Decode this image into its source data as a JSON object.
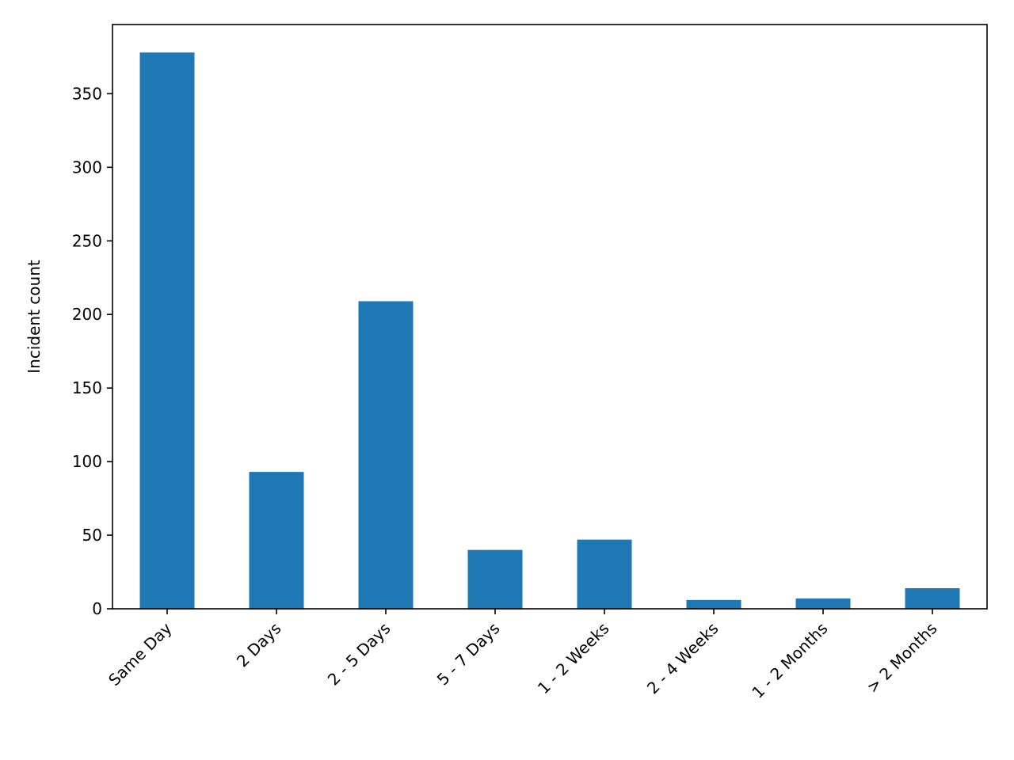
{
  "chart_data": {
    "type": "bar",
    "title": "",
    "xlabel": "",
    "ylabel": "Incident count",
    "categories": [
      "Same Day",
      "2 Days",
      "2 - 5 Days",
      "5 - 7 Days",
      "1 - 2 Weeks",
      "2 - 4 Weeks",
      "1 - 2 Months",
      "> 2 Months"
    ],
    "values": [
      378,
      93,
      209,
      40,
      47,
      6,
      7,
      14
    ],
    "ylim": [
      0,
      397
    ],
    "yticks": [
      0,
      50,
      100,
      150,
      200,
      250,
      300,
      350
    ],
    "bar_color": "#1f77b4",
    "grid": false,
    "legend": false
  }
}
